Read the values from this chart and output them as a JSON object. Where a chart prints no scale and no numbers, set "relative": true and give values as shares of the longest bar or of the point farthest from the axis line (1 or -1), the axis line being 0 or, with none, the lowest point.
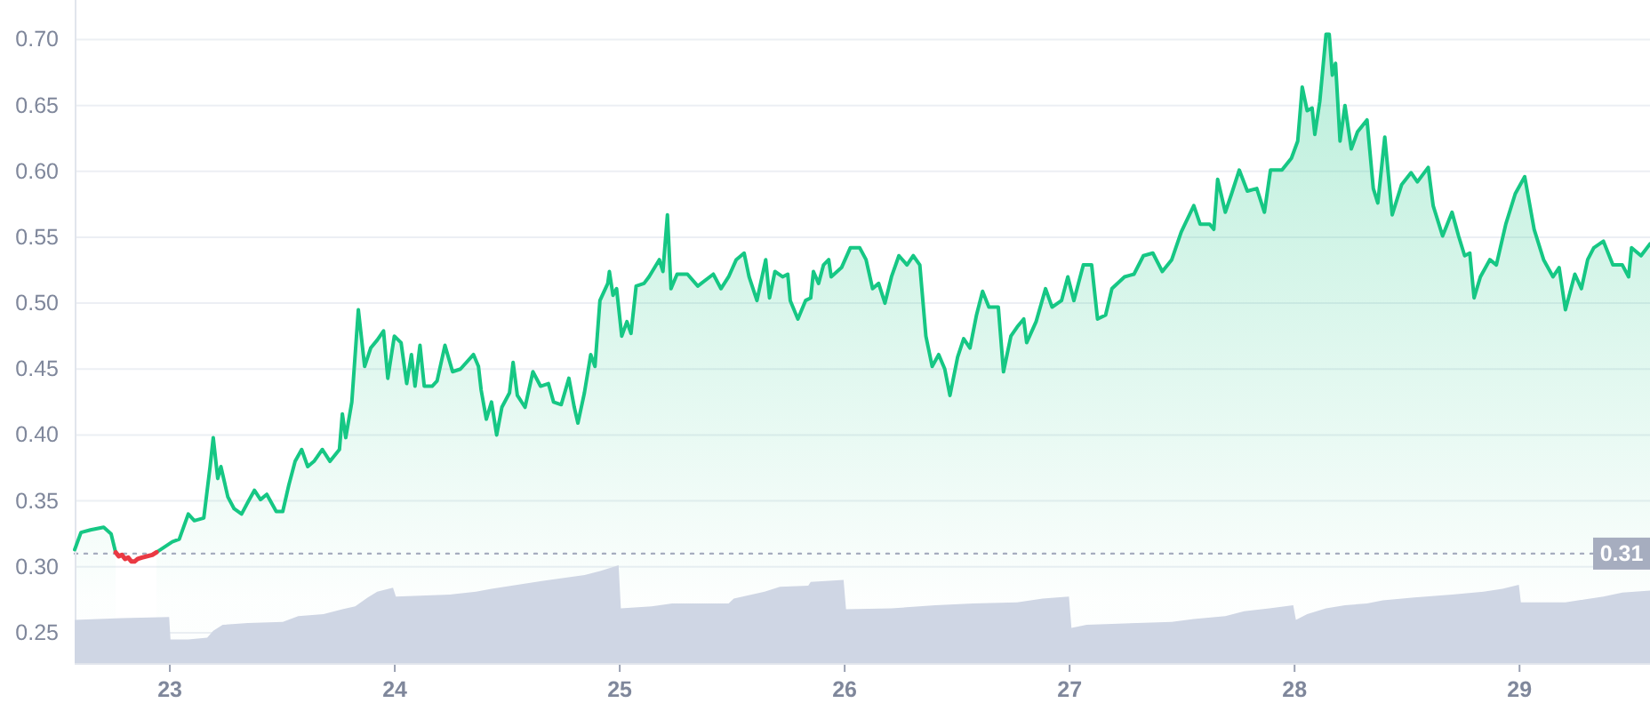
{
  "chart_data": [
    {
      "type": "area",
      "xlim": [
        22.577,
        29.58
      ],
      "ylim": [
        0.227,
        0.73
      ],
      "xticks": [
        23,
        24,
        25,
        26,
        27,
        28,
        29
      ],
      "yticks": [
        0.25,
        {
          "value": 0.3,
          "label": "0.30"
        },
        0.35,
        {
          "value": 0.4,
          "label": "0.40"
        },
        0.45,
        {
          "value": 0.5,
          "label": "0.50"
        },
        0.55,
        {
          "value": 0.6,
          "label": "0.60"
        },
        0.65,
        {
          "value": 0.7,
          "label": "0.70"
        }
      ],
      "grid": "y",
      "ref_lines": [
        {
          "axis": "y",
          "value": 0.31,
          "label": "0.31",
          "color": "#a6adbf",
          "line_style": "dotted"
        }
      ],
      "series": [
        {
          "type": "area",
          "color": "#16c784",
          "x": [
            22.577,
            22.605,
            22.647,
            22.706,
            22.739,
            22.759,
            22.85,
            22.941,
            23.011,
            23.042,
            23.082,
            23.109,
            23.151,
            23.179,
            23.193,
            23.213,
            23.227,
            23.258,
            23.286,
            23.319,
            23.347,
            23.376,
            23.403,
            23.431,
            23.473,
            23.502,
            23.529,
            23.557,
            23.586,
            23.613,
            23.641,
            23.678,
            23.712,
            23.754,
            23.767,
            23.782,
            23.809,
            23.838,
            23.866,
            23.893,
            23.922,
            23.95,
            23.969,
            23.998,
            24.028,
            24.053,
            24.074,
            24.09,
            24.112,
            24.131,
            24.166,
            24.188,
            24.223,
            24.257,
            24.292,
            24.35,
            24.372,
            24.384,
            24.407,
            24.43,
            24.453,
            24.476,
            24.51,
            24.526,
            24.545,
            24.579,
            24.614,
            24.648,
            24.683,
            24.706,
            24.74,
            24.774,
            24.798,
            24.814,
            24.843,
            24.871,
            24.89,
            24.912,
            24.947,
            24.954,
            24.97,
            24.986,
            25.009,
            25.032,
            25.05,
            25.073,
            25.108,
            25.13,
            25.176,
            25.192,
            25.212,
            25.228,
            25.255,
            25.301,
            25.347,
            25.416,
            25.45,
            25.484,
            25.518,
            25.553,
            25.575,
            25.61,
            25.649,
            25.666,
            25.69,
            25.724,
            25.747,
            25.758,
            25.792,
            25.826,
            25.849,
            25.861,
            25.884,
            25.906,
            25.929,
            25.94,
            25.986,
            26.025,
            26.067,
            26.095,
            26.124,
            26.151,
            26.179,
            26.208,
            26.241,
            26.277,
            26.305,
            26.334,
            26.361,
            26.389,
            26.418,
            26.445,
            26.468,
            26.502,
            26.529,
            26.557,
            26.586,
            26.613,
            26.641,
            26.683,
            26.706,
            26.739,
            26.767,
            26.796,
            26.809,
            26.851,
            26.893,
            26.922,
            26.964,
            26.992,
            27.019,
            27.061,
            27.098,
            27.124,
            27.16,
            27.188,
            27.244,
            27.286,
            27.328,
            27.37,
            27.412,
            27.454,
            27.496,
            27.552,
            27.58,
            27.622,
            27.641,
            27.658,
            27.692,
            27.72,
            27.754,
            27.79,
            27.832,
            27.866,
            27.893,
            27.944,
            27.986,
            28.014,
            28.034,
            28.056,
            28.078,
            28.09,
            28.112,
            28.14,
            28.154,
            28.168,
            28.182,
            28.202,
            28.224,
            28.252,
            28.28,
            28.322,
            28.35,
            28.37,
            28.401,
            28.434,
            28.476,
            28.518,
            28.546,
            28.594,
            28.616,
            28.658,
            28.7,
            28.729,
            28.756,
            28.779,
            28.798,
            28.826,
            28.868,
            28.897,
            28.939,
            28.981,
            29.023,
            29.065,
            29.107,
            29.149,
            29.176,
            29.204,
            29.246,
            29.275,
            29.303,
            29.33,
            29.373,
            29.415,
            29.457,
            29.485,
            29.498,
            29.54,
            29.58
          ],
          "values": [
            0.313,
            0.326,
            0.328,
            0.33,
            0.325,
            0.311,
            null,
            0.311,
            0.319,
            0.321,
            0.34,
            0.335,
            0.337,
            0.376,
            0.398,
            0.367,
            0.376,
            0.353,
            0.344,
            0.34,
            0.349,
            0.358,
            0.351,
            0.355,
            0.342,
            0.342,
            0.362,
            0.38,
            0.389,
            0.376,
            0.38,
            0.389,
            0.38,
            0.389,
            0.416,
            0.398,
            0.425,
            0.495,
            0.452,
            0.466,
            0.472,
            0.479,
            0.443,
            0.475,
            0.47,
            0.439,
            0.461,
            0.437,
            0.468,
            0.437,
            0.437,
            0.441,
            0.468,
            0.448,
            0.45,
            0.461,
            0.452,
            0.434,
            0.412,
            0.425,
            0.4,
            0.421,
            0.432,
            0.455,
            0.43,
            0.421,
            0.448,
            0.437,
            0.439,
            0.425,
            0.423,
            0.443,
            0.421,
            0.409,
            0.432,
            0.461,
            0.452,
            0.502,
            0.515,
            0.524,
            0.506,
            0.511,
            0.475,
            0.486,
            0.477,
            0.513,
            0.515,
            0.52,
            0.533,
            0.524,
            0.567,
            0.511,
            0.522,
            0.522,
            0.513,
            0.522,
            0.511,
            0.52,
            0.533,
            0.538,
            0.52,
            0.502,
            0.533,
            0.504,
            0.524,
            0.52,
            0.522,
            0.502,
            0.488,
            0.502,
            0.504,
            0.524,
            0.515,
            0.529,
            0.533,
            0.52,
            0.527,
            0.542,
            0.542,
            0.533,
            0.511,
            0.515,
            0.5,
            0.52,
            0.536,
            0.529,
            0.536,
            0.529,
            0.475,
            0.452,
            0.461,
            0.45,
            0.43,
            0.459,
            0.473,
            0.466,
            0.491,
            0.509,
            0.497,
            0.497,
            0.448,
            0.475,
            0.482,
            0.488,
            0.47,
            0.486,
            0.511,
            0.497,
            0.502,
            0.52,
            0.502,
            0.529,
            0.529,
            0.488,
            0.491,
            0.511,
            0.52,
            0.522,
            0.536,
            0.538,
            0.524,
            0.533,
            0.554,
            0.574,
            0.56,
            0.56,
            0.556,
            0.594,
            0.569,
            0.583,
            0.601,
            0.585,
            0.587,
            0.569,
            0.601,
            0.601,
            0.61,
            0.623,
            0.664,
            0.646,
            0.648,
            0.628,
            0.653,
            0.704,
            0.704,
            0.673,
            0.682,
            0.623,
            0.65,
            0.617,
            0.63,
            0.639,
            0.587,
            0.576,
            0.626,
            0.567,
            0.59,
            0.599,
            0.592,
            0.603,
            0.574,
            0.551,
            0.569,
            0.551,
            0.536,
            0.538,
            0.504,
            0.52,
            0.533,
            0.529,
            0.56,
            0.583,
            0.596,
            0.556,
            0.533,
            0.52,
            0.527,
            0.495,
            0.522,
            0.511,
            0.533,
            0.542,
            0.547,
            0.529,
            0.529,
            0.52,
            0.542,
            0.536,
            0.545
          ]
        },
        {
          "type": "line",
          "color": "#ea3943",
          "x": [
            22.759,
            22.773,
            22.787,
            22.801,
            22.815,
            22.829,
            22.843,
            22.857,
            22.876,
            22.899,
            22.922,
            22.941
          ],
          "values": [
            0.311,
            0.308,
            0.309,
            0.306,
            0.307,
            0.304,
            0.304,
            0.306,
            0.307,
            0.308,
            0.309,
            0.311
          ]
        }
      ]
    },
    {
      "type": "area",
      "relative": true,
      "xlim": [
        22.577,
        29.58
      ],
      "color": "#cfd6e4",
      "x": [
        22.577,
        22.787,
        22.997,
        23.003,
        23.082,
        23.166,
        23.193,
        23.235,
        23.347,
        23.502,
        23.571,
        23.683,
        23.767,
        23.824,
        23.88,
        23.922,
        23.992,
        24.005,
        24.246,
        24.361,
        24.43,
        24.545,
        24.66,
        24.752,
        24.844,
        24.913,
        24.995,
        25.005,
        25.142,
        25.233,
        25.484,
        25.507,
        25.644,
        25.712,
        25.838,
        25.849,
        25.995,
        26.006,
        26.208,
        26.403,
        26.571,
        26.767,
        26.88,
        26.997,
        27.008,
        27.076,
        27.3,
        27.454,
        27.552,
        27.692,
        27.776,
        27.888,
        27.994,
        28.006,
        28.056,
        28.14,
        28.224,
        28.322,
        28.392,
        28.532,
        28.7,
        28.84,
        28.924,
        28.997,
        29.006,
        29.204,
        29.288,
        29.373,
        29.457,
        29.58
      ],
      "values": [
        0.44,
        0.46,
        0.47,
        0.24,
        0.24,
        0.26,
        0.33,
        0.39,
        0.41,
        0.42,
        0.48,
        0.5,
        0.55,
        0.58,
        0.67,
        0.73,
        0.77,
        0.68,
        0.7,
        0.73,
        0.76,
        0.8,
        0.84,
        0.87,
        0.9,
        0.94,
        1,
        0.56,
        0.58,
        0.61,
        0.61,
        0.66,
        0.73,
        0.78,
        0.79,
        0.83,
        0.85,
        0.55,
        0.56,
        0.59,
        0.61,
        0.62,
        0.66,
        0.68,
        0.36,
        0.39,
        0.41,
        0.42,
        0.45,
        0.48,
        0.53,
        0.56,
        0.59,
        0.44,
        0.5,
        0.56,
        0.59,
        0.61,
        0.64,
        0.67,
        0.7,
        0.73,
        0.76,
        0.8,
        0.62,
        0.62,
        0.65,
        0.68,
        0.72,
        0.74
      ]
    }
  ]
}
